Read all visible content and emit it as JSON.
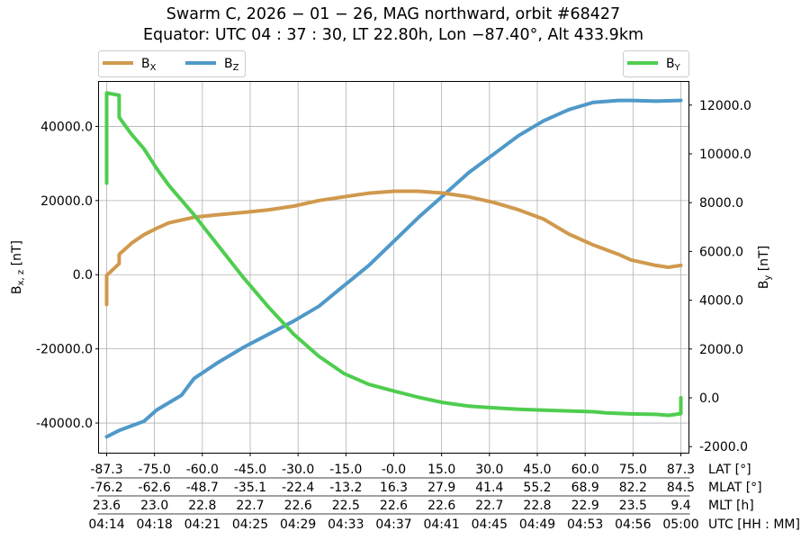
{
  "chart_data": {
    "type": "line",
    "title_line1": "Swarm C,  2026 − 01 − 26,  MAG northward,  orbit #68427",
    "title_line2": "Equator:  UTC 04 : 37 : 30,  LT 22.80h,  Lon  −87.40°,  Alt 433.9km",
    "ylabel_left": "B",
    "ylabel_left_sub": "x, z",
    "ylabel_left_unit": " [nT]",
    "ylabel_right": "B",
    "ylabel_right_sub": "y",
    "ylabel_right_unit": " [nT]",
    "ylim_left": [
      -48000,
      52000
    ],
    "ylim_right": [
      -2250,
      12950
    ],
    "yticks_left": [
      -40000,
      -20000,
      0,
      20000,
      40000
    ],
    "yticks_left_labels": [
      "-40000.0",
      "-20000.0",
      "0.0",
      "20000.0",
      "40000.0"
    ],
    "yticks_right": [
      -2000,
      0,
      2000,
      4000,
      6000,
      8000,
      10000,
      12000
    ],
    "yticks_right_labels": [
      "-2000.0",
      "0.0",
      "2000.0",
      "4000.0",
      "6000.0",
      "8000.0",
      "10000.0",
      "12000.0"
    ],
    "x_axis_scale": "time, equally spaced ticks",
    "grid": true,
    "legends": [
      {
        "placement": "top-left, above plot",
        "entries": [
          "Bx",
          "Bz"
        ]
      },
      {
        "placement": "top-right, above plot",
        "entries": [
          "By"
        ]
      }
    ],
    "x_tick_rows": [
      {
        "label": "LAT [°]",
        "ticks": [
          "-87.3",
          "-75.0",
          "-60.0",
          "-45.0",
          "-30.0",
          "-15.0",
          "-0.0",
          "15.0",
          "30.0",
          "45.0",
          "60.0",
          "75.0",
          "87.3"
        ]
      },
      {
        "label": "MLAT [°]",
        "ticks": [
          "-76.2",
          "-62.6",
          "-48.7",
          "-35.1",
          "-22.4",
          "-13.2",
          "16.3",
          "27.9",
          "41.4",
          "55.2",
          "68.9",
          "82.2",
          "84.5"
        ]
      },
      {
        "label": "MLT [h]",
        "ticks": [
          "23.6",
          "23.0",
          "22.8",
          "22.7",
          "22.6",
          "22.5",
          "22.6",
          "22.6",
          "22.7",
          "22.8",
          "22.9",
          "23.5",
          "9.4"
        ]
      },
      {
        "label": "UTC [HH : MM]",
        "ticks": [
          "04:14",
          "04:18",
          "04:21",
          "04:25",
          "04:29",
          "04:33",
          "04:37",
          "04:41",
          "04:45",
          "04:49",
          "04:53",
          "04:56",
          "05:00"
        ]
      }
    ],
    "series": [
      {
        "name": "B",
        "name_sub": "X",
        "color": "#d0994d",
        "axis": "left",
        "x": [
          "04:14",
          "04:14",
          "04:15",
          "04:15",
          "04:16",
          "04:17",
          "04:18",
          "04:19",
          "04:21",
          "04:23",
          "04:25",
          "04:27",
          "04:29",
          "04:31",
          "04:33",
          "04:35",
          "04:37",
          "04:39",
          "04:41",
          "04:43",
          "04:45",
          "04:47",
          "04:49",
          "04:51",
          "04:53",
          "04:55",
          "04:56",
          "04:58",
          "04:59",
          "05:00"
        ],
        "values": [
          -8000,
          -200,
          3000,
          5500,
          8500,
          10800,
          12500,
          14000,
          15500,
          16200,
          16800,
          17500,
          18500,
          20000,
          21000,
          22000,
          22500,
          22500,
          22000,
          21000,
          19500,
          17500,
          15000,
          11000,
          8000,
          5500,
          4000,
          2500,
          2000,
          2500
        ]
      },
      {
        "name": "B",
        "name_sub": "Z",
        "color": "#4f99c9",
        "axis": "left",
        "x": [
          "04:14",
          "04:15",
          "04:17",
          "04:18",
          "04:20",
          "04:21",
          "04:23",
          "04:25",
          "04:27",
          "04:29",
          "04:31",
          "04:33",
          "04:35",
          "04:37",
          "04:39",
          "04:41",
          "04:43",
          "04:45",
          "04:47",
          "04:49",
          "04:51",
          "04:53",
          "04:55",
          "04:56",
          "04:58",
          "04:59",
          "05:00"
        ],
        "values": [
          -43700,
          -42000,
          -39500,
          -36500,
          -32500,
          -28000,
          -23500,
          -19500,
          -16000,
          -12500,
          -8500,
          -3000,
          2500,
          9000,
          15500,
          21500,
          27500,
          32500,
          37500,
          41500,
          44500,
          46500,
          47000,
          47000,
          46800,
          46900,
          47000
        ]
      },
      {
        "name": "B",
        "name_sub": "Y",
        "color": "#4fcd4f",
        "axis": "right",
        "x": [
          "04:14",
          "04:14",
          "04:14",
          "04:14",
          "04:15",
          "04:15",
          "04:15",
          "04:16",
          "04:17",
          "04:18",
          "04:19",
          "04:21",
          "04:23",
          "04:25",
          "04:27",
          "04:29",
          "04:31",
          "04:33",
          "04:35",
          "04:37",
          "04:39",
          "04:41",
          "04:43",
          "04:45",
          "04:47",
          "04:49",
          "04:51",
          "04:53",
          "04:54",
          "04:56",
          "04:58",
          "04:59",
          "05:00",
          "05:00",
          "05:00"
        ],
        "values": [
          8800,
          11000,
          12300,
          12500,
          12400,
          12000,
          11500,
          10800,
          10200,
          9400,
          8700,
          7500,
          6200,
          4900,
          3700,
          2600,
          1700,
          1000,
          550,
          280,
          20,
          -200,
          -340,
          -410,
          -470,
          -510,
          -540,
          -570,
          -620,
          -660,
          -680,
          -720,
          -650,
          -100,
          0
        ]
      }
    ]
  }
}
